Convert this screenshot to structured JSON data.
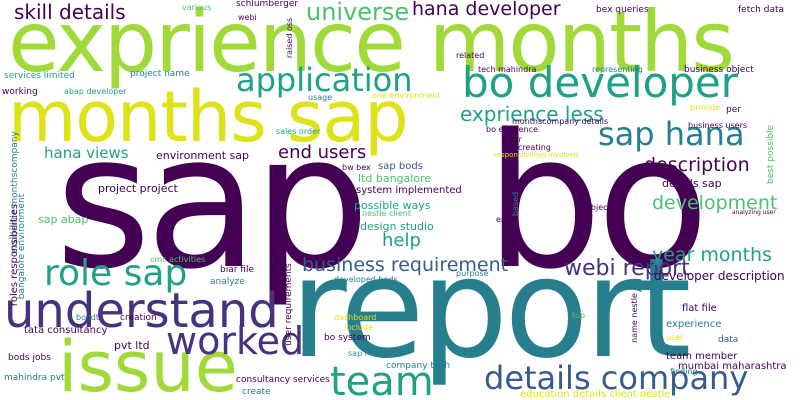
{
  "colors": {
    "dark_purple": "#440154",
    "indigo": "#46327e",
    "slate_blue": "#365c8d",
    "teal_blue": "#277f8e",
    "teal": "#1fa187",
    "green": "#4ac16d",
    "lime": "#a0da39",
    "yellow": "#dde318"
  },
  "words": {
    "sap": "sap",
    "bo": "bo",
    "report": "report",
    "expience_months": "exprience months",
    "months_sap": "months sap",
    "issue": "issue",
    "bo_developer": "bo developer",
    "understand": "understand",
    "team": "team",
    "details_company": "details company",
    "role_sap": "role sap",
    "application": "application",
    "sap_hana": "sap hana",
    "worked": "worked",
    "webi_report": "webi report",
    "universe": "universe",
    "hana_developer": "hana developer",
    "skill_details": "skill details",
    "exprience_less": "exprience less",
    "business_requirement": "business requirement",
    "year_months": "year months",
    "development": "development",
    "description": "description",
    "end_users": "end users",
    "hana_views": "hana views",
    "help": "help",
    "developer_description": "developer description",
    "project_project": "project project",
    "environment_sap": "environment sap",
    "details_sap": "details sap",
    "ltd_bangalore": "ltd bangalore",
    "sap_bods": "sap bods",
    "system_implemented": "system implemented",
    "possible_ways": "possible ways",
    "design_studio": "design studio",
    "sap_abap": "sap abap",
    "pvt_ltd": "pvt ltd",
    "flat_file": "flat file",
    "experience": "experience",
    "team_member": "team member",
    "mumbai_maharashtra": "mumbai maharashtra",
    "company_tech": "company tech",
    "bo_system": "bo system",
    "education_details_client_nestle": "education details client nestle",
    "consultancy_services": "consultancy services",
    "tata_consultancy": "tata consultancy",
    "mahindra_pvt": "mahindra pvt",
    "bods_jobs": "bods jobs",
    "create": "create",
    "creation": "creation",
    "bo_idt": "bo idt",
    "analyze": "analyze",
    "biar_file": "biar file",
    "cmc_activities": "cmc activities",
    "developed_bods": "developed bods",
    "purpose": "purpose",
    "dashboard": "dashboard",
    "include": "include",
    "sap_r": "sap r",
    "top": "top",
    "data": "data",
    "finding": "finding",
    "user": "user",
    "end": "end",
    "object": "object",
    "nestle_client": "nestle client",
    "bw_bex": "bw bex",
    "creating": "creating",
    "year": "year",
    "bo_exprience": "bo exprience",
    "monthscompany_details": "monthscompany details",
    "responsibilities_involved": "responsibilities involved",
    "per": "per",
    "provide": "provide",
    "business_users": "business users",
    "analyzing_user": "analyzing user",
    "sales_order": "sales order",
    "services_limited": "services limited",
    "project_name": "project name",
    "working": "working",
    "abap_developer": "abap developer",
    "usage": "usage",
    "one_environment": "one environment",
    "related": "related",
    "tech_mahindra": "tech mahindra",
    "representing": "representing",
    "business_object": "business object",
    "bex_queries": "bex queries",
    "fetch_data": "fetch data",
    "schlumberger": "schlumberger",
    "webi": "webi",
    "various": "various",
    "raised_oss": "raised oss",
    "exprience_monthscompany": "exprience monthscompany",
    "roles_responsibilities": "roles responsibilities",
    "bangalore_environment": "bangalore environment",
    "user_requirements": "user requirements",
    "based": "based",
    "best_possible": "best possible",
    "name_nestle": "name nestle"
  }
}
